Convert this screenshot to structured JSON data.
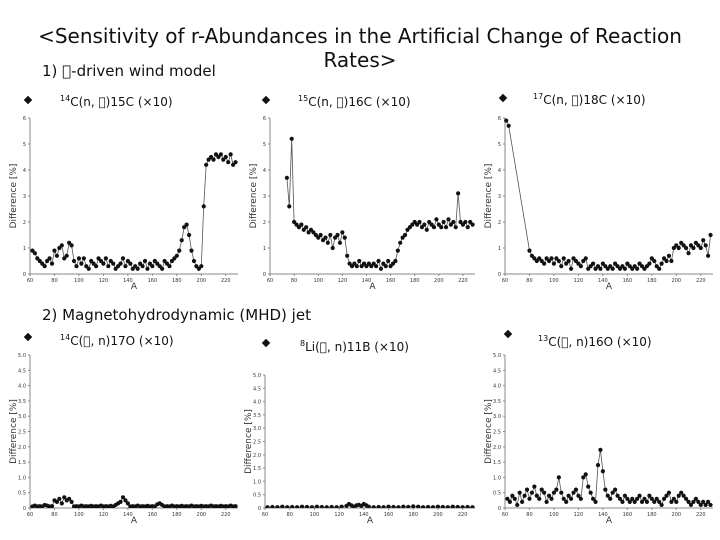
{
  "slide": {
    "title": "<Sensitivity of r-Abundances in the Artificial Change of Reaction Rates>",
    "section1": "1) \u0000-driven wind model",
    "section2": "2) Magnetohydrodynamic (MHD) jet"
  },
  "chart_data": [
    {
      "type": "scatter",
      "id": "c1",
      "label_prefix": "14",
      "label_main": "C(n, \u0000)",
      "label_tail": "15C (×10)",
      "xlabel": "A",
      "ylabel": "Difference [%]",
      "xlim": [
        60,
        230
      ],
      "ylim": [
        0,
        6
      ],
      "xticks": [
        "60",
        "80",
        "100",
        "120",
        "140",
        "160",
        "180",
        "200",
        "220"
      ],
      "yticks": [
        "0",
        "1",
        "2",
        "3",
        "4",
        "5",
        "6"
      ],
      "x": [
        62,
        64,
        66,
        68,
        70,
        72,
        74,
        76,
        78,
        80,
        82,
        84,
        86,
        88,
        90,
        92,
        94,
        96,
        98,
        100,
        102,
        104,
        106,
        108,
        110,
        112,
        114,
        116,
        118,
        120,
        122,
        124,
        126,
        128,
        130,
        132,
        134,
        136,
        138,
        140,
        142,
        144,
        146,
        148,
        150,
        152,
        154,
        156,
        158,
        160,
        162,
        164,
        166,
        168,
        170,
        172,
        174,
        176,
        178,
        180,
        182,
        184,
        186,
        188,
        190,
        192,
        194,
        196,
        198,
        200,
        202,
        204,
        206,
        208,
        210,
        212,
        214,
        216,
        218,
        220,
        222,
        224,
        226,
        228
      ],
      "y": [
        0.9,
        0.8,
        0.6,
        0.5,
        0.4,
        0.3,
        0.5,
        0.6,
        0.4,
        0.9,
        0.7,
        1.0,
        1.1,
        0.6,
        0.7,
        1.2,
        1.1,
        0.5,
        0.3,
        0.6,
        0.4,
        0.6,
        0.3,
        0.2,
        0.5,
        0.4,
        0.3,
        0.6,
        0.5,
        0.4,
        0.6,
        0.3,
        0.5,
        0.4,
        0.2,
        0.3,
        0.4,
        0.6,
        0.3,
        0.5,
        0.4,
        0.2,
        0.3,
        0.2,
        0.4,
        0.3,
        0.5,
        0.2,
        0.4,
        0.3,
        0.5,
        0.4,
        0.3,
        0.2,
        0.5,
        0.4,
        0.3,
        0.5,
        0.6,
        0.7,
        0.9,
        1.3,
        1.8,
        1.9,
        1.5,
        0.9,
        0.5,
        0.3,
        0.2,
        0.3,
        2.6,
        4.2,
        4.4,
        4.5,
        4.4,
        4.6,
        4.5,
        4.6,
        4.4,
        4.5,
        4.3,
        4.6,
        4.2,
        4.3
      ]
    },
    {
      "type": "scatter",
      "id": "c2",
      "label_prefix": "15",
      "label_main": "C(n, \u0000)",
      "label_tail": "16C (×10)",
      "xlabel": "A",
      "ylabel": "Difference [%]",
      "xlim": [
        60,
        230
      ],
      "ylim": [
        0,
        6
      ],
      "xticks": [
        "60",
        "80",
        "100",
        "120",
        "140",
        "160",
        "180",
        "200",
        "220"
      ],
      "yticks": [
        "0",
        "1",
        "2",
        "3",
        "4",
        "5",
        "6"
      ],
      "x": [
        74,
        76,
        78,
        80,
        82,
        84,
        86,
        88,
        90,
        92,
        94,
        96,
        98,
        100,
        102,
        104,
        106,
        108,
        110,
        112,
        114,
        116,
        118,
        120,
        122,
        124,
        126,
        128,
        130,
        132,
        134,
        136,
        138,
        140,
        142,
        144,
        146,
        148,
        150,
        152,
        154,
        156,
        158,
        160,
        162,
        164,
        166,
        168,
        170,
        172,
        174,
        176,
        178,
        180,
        182,
        184,
        186,
        188,
        190,
        192,
        194,
        196,
        198,
        200,
        202,
        204,
        206,
        208,
        210,
        212,
        214,
        216,
        218,
        220,
        222,
        224,
        226,
        228
      ],
      "y": [
        3.7,
        2.6,
        5.2,
        2.0,
        1.9,
        1.8,
        1.9,
        1.7,
        1.8,
        1.6,
        1.7,
        1.6,
        1.5,
        1.4,
        1.5,
        1.3,
        1.4,
        1.2,
        1.5,
        1.0,
        1.4,
        1.5,
        1.2,
        1.6,
        1.4,
        0.7,
        0.4,
        0.3,
        0.4,
        0.3,
        0.5,
        0.3,
        0.4,
        0.3,
        0.4,
        0.3,
        0.4,
        0.3,
        0.5,
        0.2,
        0.4,
        0.3,
        0.5,
        0.3,
        0.4,
        0.5,
        0.9,
        1.2,
        1.4,
        1.5,
        1.7,
        1.8,
        1.9,
        2.0,
        1.9,
        2.0,
        1.8,
        1.9,
        1.7,
        2.0,
        1.9,
        1.8,
        2.1,
        1.9,
        1.8,
        2.0,
        1.8,
        2.1,
        1.9,
        2.0,
        1.8,
        3.1,
        2.0,
        1.9,
        2.0,
        1.8,
        2.0,
        1.9
      ]
    },
    {
      "type": "scatter",
      "id": "c3",
      "label_prefix": "17",
      "label_main": "C(n, \u0000)",
      "label_tail": "18C (×10)",
      "xlabel": "A",
      "ylabel": "Difference [%]",
      "xlim": [
        60,
        230
      ],
      "ylim": [
        0,
        6
      ],
      "xticks": [
        "60",
        "80",
        "100",
        "120",
        "140",
        "160",
        "180",
        "200",
        "220"
      ],
      "yticks": [
        "0",
        "1",
        "2",
        "3",
        "4",
        "5",
        "6"
      ],
      "x": [
        61,
        63,
        80,
        82,
        84,
        86,
        88,
        90,
        92,
        94,
        96,
        98,
        100,
        102,
        104,
        106,
        108,
        110,
        112,
        114,
        116,
        118,
        120,
        122,
        124,
        126,
        128,
        130,
        132,
        134,
        136,
        138,
        140,
        142,
        144,
        146,
        148,
        150,
        152,
        154,
        156,
        158,
        160,
        162,
        164,
        166,
        168,
        170,
        172,
        174,
        176,
        178,
        180,
        182,
        184,
        186,
        188,
        190,
        192,
        194,
        196,
        198,
        200,
        202,
        204,
        206,
        208,
        210,
        212,
        214,
        216,
        218,
        220,
        222,
        224,
        226,
        228
      ],
      "y": [
        5.9,
        5.7,
        0.9,
        0.7,
        0.6,
        0.5,
        0.6,
        0.5,
        0.4,
        0.6,
        0.5,
        0.6,
        0.4,
        0.6,
        0.5,
        0.3,
        0.6,
        0.4,
        0.5,
        0.2,
        0.6,
        0.5,
        0.4,
        0.3,
        0.5,
        0.6,
        0.2,
        0.3,
        0.4,
        0.2,
        0.3,
        0.2,
        0.4,
        0.3,
        0.2,
        0.3,
        0.2,
        0.4,
        0.3,
        0.2,
        0.3,
        0.2,
        0.4,
        0.3,
        0.2,
        0.3,
        0.2,
        0.4,
        0.3,
        0.2,
        0.3,
        0.4,
        0.6,
        0.5,
        0.3,
        0.2,
        0.4,
        0.6,
        0.5,
        0.7,
        0.5,
        1.0,
        1.1,
        1.0,
        1.2,
        1.1,
        1.0,
        0.8,
        1.1,
        1.0,
        1.2,
        1.1,
        1.0,
        1.3,
        1.1,
        0.7,
        1.5
      ]
    },
    {
      "type": "scatter",
      "id": "c4",
      "label_prefix": "14",
      "label_main": "C(\u0000, n)",
      "label_tail": "17O (×10)",
      "xlabel": "A",
      "ylabel": "Difference [%]",
      "xlim": [
        60,
        230
      ],
      "ylim": [
        0,
        5
      ],
      "xticks": [
        "60",
        "80",
        "100",
        "120",
        "140",
        "160",
        "180",
        "200",
        "220"
      ],
      "yticks": [
        "0",
        "0.5",
        "1.0",
        "1.5",
        "2.0",
        "2.5",
        "3.0",
        "3.5",
        "4.0",
        "4.5",
        "5.0"
      ],
      "x": [
        62,
        64,
        66,
        68,
        70,
        72,
        74,
        76,
        78,
        80,
        82,
        84,
        86,
        88,
        90,
        92,
        94,
        96,
        98,
        100,
        102,
        104,
        106,
        108,
        110,
        112,
        114,
        116,
        118,
        120,
        122,
        124,
        126,
        128,
        130,
        132,
        134,
        136,
        138,
        140,
        142,
        144,
        146,
        148,
        150,
        152,
        154,
        156,
        158,
        160,
        162,
        164,
        166,
        168,
        170,
        172,
        174,
        176,
        178,
        180,
        182,
        184,
        186,
        188,
        190,
        192,
        194,
        196,
        198,
        200,
        202,
        204,
        206,
        208,
        210,
        212,
        214,
        216,
        218,
        220,
        222,
        224,
        226,
        228
      ],
      "y": [
        0.05,
        0.08,
        0.05,
        0.06,
        0.05,
        0.1,
        0.08,
        0.05,
        0.06,
        0.25,
        0.2,
        0.3,
        0.15,
        0.35,
        0.25,
        0.3,
        0.2,
        0.05,
        0.06,
        0.05,
        0.08,
        0.05,
        0.06,
        0.05,
        0.07,
        0.05,
        0.06,
        0.05,
        0.08,
        0.05,
        0.06,
        0.05,
        0.07,
        0.05,
        0.1,
        0.15,
        0.2,
        0.35,
        0.25,
        0.15,
        0.05,
        0.06,
        0.05,
        0.08,
        0.05,
        0.06,
        0.05,
        0.07,
        0.05,
        0.06,
        0.05,
        0.12,
        0.15,
        0.1,
        0.05,
        0.06,
        0.05,
        0.08,
        0.05,
        0.06,
        0.05,
        0.07,
        0.05,
        0.06,
        0.05,
        0.08,
        0.05,
        0.06,
        0.05,
        0.07,
        0.05,
        0.06,
        0.05,
        0.08,
        0.05,
        0.06,
        0.05,
        0.07,
        0.05,
        0.06,
        0.05,
        0.08,
        0.05,
        0.06
      ]
    },
    {
      "type": "scatter",
      "id": "c5",
      "label_prefix": "8",
      "label_main": "Li(\u0000, n)",
      "label_tail": "11B (×10)",
      "xlabel": "A",
      "ylabel": "Difference [%]",
      "xlim": [
        60,
        230
      ],
      "ylim": [
        0,
        5
      ],
      "xticks": [
        "60",
        "80",
        "100",
        "120",
        "140",
        "160",
        "180",
        "200",
        "220"
      ],
      "yticks": [
        "0",
        "0.5",
        "1.0",
        "1.5",
        "2.0",
        "2.5",
        "3.0",
        "3.5",
        "4.0",
        "4.5",
        "5.0"
      ],
      "x": [
        62,
        66,
        70,
        74,
        78,
        82,
        86,
        90,
        94,
        98,
        102,
        106,
        110,
        114,
        118,
        122,
        126,
        128,
        130,
        132,
        134,
        136,
        138,
        140,
        142,
        144,
        148,
        152,
        156,
        160,
        164,
        168,
        172,
        176,
        180,
        184,
        188,
        192,
        196,
        200,
        204,
        208,
        212,
        216,
        220,
        224,
        228
      ],
      "y": [
        0.03,
        0.04,
        0.03,
        0.05,
        0.03,
        0.04,
        0.03,
        0.05,
        0.04,
        0.03,
        0.05,
        0.04,
        0.03,
        0.04,
        0.03,
        0.05,
        0.08,
        0.15,
        0.1,
        0.05,
        0.1,
        0.12,
        0.08,
        0.15,
        0.1,
        0.05,
        0.03,
        0.04,
        0.03,
        0.05,
        0.04,
        0.03,
        0.05,
        0.04,
        0.06,
        0.05,
        0.03,
        0.04,
        0.03,
        0.05,
        0.04,
        0.03,
        0.05,
        0.04,
        0.03,
        0.04,
        0.03
      ]
    },
    {
      "type": "scatter",
      "id": "c6",
      "label_prefix": "13",
      "label_main": "C(\u0000, n)",
      "label_tail": "16O (×10)",
      "xlabel": "A",
      "ylabel": "Difference [%]",
      "xlim": [
        60,
        230
      ],
      "ylim": [
        0,
        5
      ],
      "xticks": [
        "60",
        "80",
        "100",
        "120",
        "140",
        "160",
        "180",
        "200",
        "220"
      ],
      "yticks": [
        "0",
        "0.5",
        "1.0",
        "1.5",
        "2.0",
        "2.5",
        "3.0",
        "3.5",
        "4.0",
        "4.5",
        "5.0"
      ],
      "x": [
        62,
        64,
        66,
        68,
        70,
        72,
        74,
        76,
        78,
        80,
        82,
        84,
        86,
        88,
        90,
        92,
        94,
        96,
        98,
        100,
        102,
        104,
        106,
        108,
        110,
        112,
        114,
        116,
        118,
        120,
        122,
        124,
        126,
        128,
        130,
        132,
        134,
        136,
        138,
        140,
        142,
        144,
        146,
        148,
        150,
        152,
        154,
        156,
        158,
        160,
        162,
        164,
        166,
        168,
        170,
        172,
        174,
        176,
        178,
        180,
        182,
        184,
        186,
        188,
        190,
        192,
        194,
        196,
        198,
        200,
        202,
        204,
        206,
        208,
        210,
        212,
        214,
        216,
        218,
        220,
        222,
        224,
        226,
        228
      ],
      "y": [
        0.3,
        0.2,
        0.4,
        0.3,
        0.1,
        0.5,
        0.2,
        0.4,
        0.6,
        0.3,
        0.5,
        0.7,
        0.4,
        0.3,
        0.6,
        0.5,
        0.2,
        0.4,
        0.3,
        0.5,
        0.6,
        1.0,
        0.5,
        0.3,
        0.2,
        0.4,
        0.3,
        0.5,
        0.6,
        0.4,
        0.3,
        1.0,
        1.1,
        0.7,
        0.5,
        0.3,
        0.2,
        1.4,
        1.9,
        1.2,
        0.6,
        0.4,
        0.3,
        0.5,
        0.6,
        0.4,
        0.3,
        0.2,
        0.4,
        0.3,
        0.2,
        0.3,
        0.2,
        0.3,
        0.4,
        0.2,
        0.3,
        0.2,
        0.4,
        0.3,
        0.2,
        0.3,
        0.2,
        0.1,
        0.3,
        0.4,
        0.5,
        0.2,
        0.3,
        0.2,
        0.4,
        0.5,
        0.4,
        0.3,
        0.2,
        0.1,
        0.2,
        0.3,
        0.2,
        0.1,
        0.2,
        0.1,
        0.2,
        0.1
      ]
    }
  ]
}
